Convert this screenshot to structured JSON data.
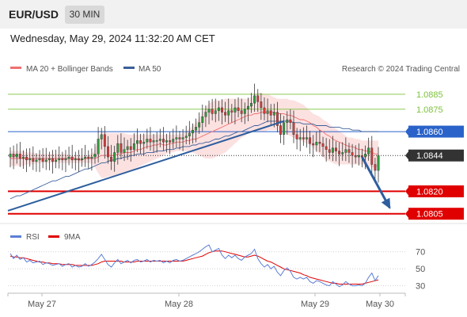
{
  "header": {
    "symbol": "EUR/USD",
    "timeframe": "30 MIN",
    "datetime": "Wednesday, May 29, 2024 11:32:20 AM CET"
  },
  "legend": {
    "ma20_label": "MA 20 + Bollinger Bands",
    "ma50_label": "MA 50",
    "credit": "Research © 2024 Trading Central",
    "rsi_label": "RSI",
    "rsi_ma_label": "9MA"
  },
  "colors": {
    "ma20": "#f07070",
    "bollinger_fill": "#fcdcdc",
    "ma50": "#3a5f9a",
    "resistance": "#7cc23c",
    "support": "#e00000",
    "pivot": "#2a62c9",
    "current": "#333333",
    "arrow": "#2d5e9e",
    "rsi": "#5b7fd6",
    "rsi_ma": "#e00000"
  },
  "chart_data": [
    {
      "type": "candlestick",
      "x_labels": [
        "May 27",
        "May 28",
        "May 29",
        "May 30"
      ],
      "ylim": [
        1.0799,
        1.0894
      ],
      "levels": [
        {
          "value": 1.0885,
          "label": "1.0885",
          "kind": "resistance"
        },
        {
          "value": 1.0875,
          "label": "1.0875",
          "kind": "resistance"
        },
        {
          "value": 1.086,
          "label": "1.0860",
          "kind": "pivot"
        },
        {
          "value": 1.0844,
          "label": "1.0844",
          "kind": "current"
        },
        {
          "value": 1.082,
          "label": "1.0820",
          "kind": "support"
        },
        {
          "value": 1.0805,
          "label": "1.0805",
          "kind": "support"
        }
      ],
      "close": [
        1.0845,
        1.0843,
        1.0845,
        1.0842,
        1.0843,
        1.0841,
        1.0842,
        1.084,
        1.0841,
        1.0842,
        1.084,
        1.0841,
        1.0842,
        1.084,
        1.0841,
        1.0842,
        1.0841,
        1.0842,
        1.0843,
        1.0841,
        1.0842,
        1.0841,
        1.0842,
        1.0843,
        1.0842,
        1.0843,
        1.0845,
        1.0855,
        1.0858,
        1.085,
        1.0843,
        1.084,
        1.0846,
        1.0852,
        1.0846,
        1.0848,
        1.085,
        1.0848,
        1.0852,
        1.0854,
        1.0852,
        1.0853,
        1.0855,
        1.0853,
        1.0854,
        1.0854,
        1.0855,
        1.0853,
        1.0854,
        1.0853,
        1.0855,
        1.0856,
        1.0855,
        1.0856,
        1.0857,
        1.0859,
        1.0861,
        1.0863,
        1.0866,
        1.087,
        1.0873,
        1.0875,
        1.0872,
        1.0874,
        1.0876,
        1.0873,
        1.0871,
        1.0874,
        1.0873,
        1.0876,
        1.0874,
        1.0872,
        1.0875,
        1.0877,
        1.0879,
        1.0884,
        1.088,
        1.0876,
        1.0872,
        1.0874,
        1.0871,
        1.0873,
        1.0864,
        1.0858,
        1.0866,
        1.0868,
        1.0866,
        1.0858,
        1.0855,
        1.0856,
        1.0855,
        1.0856,
        1.0852,
        1.0851,
        1.0853,
        1.0852,
        1.085,
        1.0848,
        1.0846,
        1.0849,
        1.0847,
        1.0845,
        1.0846,
        1.0848,
        1.0846,
        1.0844,
        1.0843,
        1.0844,
        1.0843,
        1.0845,
        1.0849,
        1.0838,
        1.0834,
        1.0844
      ],
      "ma20": [
        1.0842,
        1.0842,
        1.0842,
        1.0842,
        1.0842,
        1.0842,
        1.0842,
        1.0842,
        1.0842,
        1.0842,
        1.0842,
        1.0842,
        1.0842,
        1.0842,
        1.0842,
        1.0842,
        1.0842,
        1.0842,
        1.0842,
        1.0842,
        1.0842,
        1.0841,
        1.0841,
        1.0842,
        1.0842,
        1.0842,
        1.0842,
        1.0843,
        1.0844,
        1.0844,
        1.0844,
        1.0844,
        1.0844,
        1.0845,
        1.0845,
        1.0846,
        1.0846,
        1.0846,
        1.0847,
        1.0848,
        1.0848,
        1.0849,
        1.085,
        1.085,
        1.0851,
        1.0851,
        1.0852,
        1.0851,
        1.0851,
        1.0852,
        1.0852,
        1.0853,
        1.0853,
        1.0853,
        1.0854,
        1.0854,
        1.0855,
        1.0855,
        1.0856,
        1.0857,
        1.0858,
        1.0859,
        1.086,
        1.0861,
        1.0862,
        1.0863,
        1.0864,
        1.0865,
        1.0866,
        1.0867,
        1.0868,
        1.0869,
        1.087,
        1.0871,
        1.0871,
        1.0872,
        1.0872,
        1.0873,
        1.0873,
        1.0873,
        1.0873,
        1.0873,
        1.0872,
        1.0872,
        1.0872,
        1.0871,
        1.0871,
        1.087,
        1.0869,
        1.0868,
        1.0868,
        1.0867,
        1.0866,
        1.0864,
        1.0863,
        1.0861,
        1.086,
        1.0858,
        1.0857,
        1.0855,
        1.0854,
        1.0853,
        1.0852,
        1.0851,
        1.085,
        1.085,
        1.0849,
        1.0848,
        1.0848,
        1.0847,
        1.0847,
        1.0846,
        1.0845,
        1.0845
      ],
      "bollinger_upper": [
        1.0847,
        1.0847,
        1.0847,
        1.0847,
        1.0847,
        1.0846,
        1.0846,
        1.0846,
        1.0845,
        1.0845,
        1.0845,
        1.0845,
        1.0845,
        1.0845,
        1.0845,
        1.0845,
        1.0845,
        1.0845,
        1.0844,
        1.0844,
        1.0844,
        1.0844,
        1.0844,
        1.0844,
        1.0844,
        1.0845,
        1.0848,
        1.0855,
        1.086,
        1.086,
        1.0859,
        1.0859,
        1.0859,
        1.0859,
        1.0859,
        1.0859,
        1.0858,
        1.0858,
        1.0858,
        1.0858,
        1.0858,
        1.0858,
        1.0858,
        1.0858,
        1.0858,
        1.0858,
        1.0858,
        1.0858,
        1.0858,
        1.0858,
        1.0858,
        1.0858,
        1.0858,
        1.0859,
        1.086,
        1.0862,
        1.0864,
        1.0866,
        1.0869,
        1.0873,
        1.0876,
        1.0879,
        1.088,
        1.0881,
        1.0881,
        1.0881,
        1.0882,
        1.0882,
        1.0882,
        1.0882,
        1.0882,
        1.0882,
        1.0882,
        1.0882,
        1.0883,
        1.0885,
        1.0886,
        1.0886,
        1.0885,
        1.0885,
        1.0884,
        1.0883,
        1.0882,
        1.0882,
        1.0882,
        1.0882,
        1.0881,
        1.0881,
        1.088,
        1.0879,
        1.0878,
        1.0876,
        1.0874,
        1.0872,
        1.0871,
        1.087,
        1.0868,
        1.0867,
        1.0865,
        1.0863,
        1.0862,
        1.086,
        1.0859,
        1.0857,
        1.0856,
        1.0856,
        1.0855,
        1.0855,
        1.0854,
        1.0854,
        1.0854,
        1.0854,
        1.0854,
        1.0854
      ],
      "bollinger_lower": [
        1.0837,
        1.0837,
        1.0837,
        1.0837,
        1.0837,
        1.0838,
        1.0838,
        1.0838,
        1.0839,
        1.0839,
        1.0839,
        1.0839,
        1.0839,
        1.0839,
        1.0839,
        1.0839,
        1.0839,
        1.0839,
        1.0839,
        1.0839,
        1.0839,
        1.0839,
        1.0839,
        1.0839,
        1.0839,
        1.0839,
        1.0836,
        1.0832,
        1.0829,
        1.0829,
        1.083,
        1.083,
        1.083,
        1.0831,
        1.0831,
        1.0832,
        1.0833,
        1.0834,
        1.0835,
        1.0836,
        1.0837,
        1.0838,
        1.0839,
        1.084,
        1.0841,
        1.0842,
        1.0843,
        1.0844,
        1.0845,
        1.0846,
        1.0846,
        1.0847,
        1.0847,
        1.0847,
        1.0847,
        1.0846,
        1.0846,
        1.0845,
        1.0844,
        1.0843,
        1.0842,
        1.0842,
        1.0842,
        1.0843,
        1.0844,
        1.0845,
        1.0846,
        1.0848,
        1.085,
        1.0852,
        1.0854,
        1.0856,
        1.0857,
        1.0859,
        1.086,
        1.086,
        1.086,
        1.086,
        1.086,
        1.0861,
        1.0861,
        1.0861,
        1.0861,
        1.086,
        1.0859,
        1.0858,
        1.0857,
        1.0856,
        1.0855,
        1.0854,
        1.0853,
        1.0852,
        1.0851,
        1.0849,
        1.0847,
        1.0845,
        1.0843,
        1.0841,
        1.084,
        1.0839,
        1.0838,
        1.0838,
        1.0838,
        1.0838,
        1.0838,
        1.0838,
        1.0838,
        1.0838,
        1.0838,
        1.0837,
        1.0836,
        1.0836,
        1.0836,
        1.0836
      ],
      "ma50": [
        1.0815,
        1.0816,
        1.0817,
        1.0817,
        1.0818,
        1.0819,
        1.082,
        1.0821,
        1.0822,
        1.0823,
        1.0824,
        1.0825,
        1.0826,
        1.0827,
        1.0827,
        1.0828,
        1.0829,
        1.083,
        1.083,
        1.0831,
        1.0832,
        1.0833,
        1.0834,
        1.0835,
        1.0835,
        1.0836,
        1.0837,
        1.0838,
        1.0839,
        1.0839,
        1.084,
        1.0841,
        1.0841,
        1.0842,
        1.0842,
        1.0843,
        1.0843,
        1.0844,
        1.0844,
        1.0845,
        1.0845,
        1.0845,
        1.0846,
        1.0846,
        1.0846,
        1.0847,
        1.0847,
        1.0847,
        1.0848,
        1.0848,
        1.0848,
        1.0849,
        1.0849,
        1.085,
        1.085,
        1.085,
        1.0851,
        1.0851,
        1.0852,
        1.0852,
        1.0853,
        1.0853,
        1.0854,
        1.0855,
        1.0855,
        1.0856,
        1.0857,
        1.0857,
        1.0858,
        1.0859,
        1.086,
        1.086,
        1.0861,
        1.0862,
        1.0863,
        1.0864,
        1.0864,
        1.0865,
        1.0866,
        1.0867,
        1.0867,
        1.0867,
        1.0867,
        1.0867,
        1.0867,
        1.0867,
        1.0867,
        1.0866,
        1.0866,
        1.0866,
        1.0865,
        1.0865,
        1.0865,
        1.0865,
        1.0864,
        1.0864,
        1.0864,
        1.0864,
        1.0863,
        1.0863,
        1.0863,
        1.0863,
        1.0862,
        1.0862,
        1.0862,
        1.0861,
        1.0861,
        1.0861,
        1.086,
        1.086,
        1.086,
        1.086,
        1.086,
        1.086
      ],
      "trendline": {
        "from": [
          0,
          1.0807
        ],
        "to": [
          84,
          1.0867
        ]
      },
      "forecast_arrow": {
        "from": [
          108,
          1.0843
        ],
        "to": [
          116,
          1.0809
        ]
      }
    },
    {
      "type": "line",
      "title": "RSI",
      "yticks": [
        30,
        50,
        70
      ],
      "ylim": [
        25,
        80
      ],
      "series": [
        {
          "name": "RSI",
          "values": [
            68,
            62,
            66,
            61,
            63,
            58,
            60,
            57,
            58,
            59,
            55,
            57,
            56,
            54,
            55,
            56,
            53,
            55,
            56,
            52,
            54,
            52,
            53,
            56,
            53,
            55,
            58,
            62,
            67,
            61,
            55,
            52,
            57,
            61,
            56,
            58,
            60,
            57,
            60,
            61,
            58,
            59,
            61,
            58,
            60,
            59,
            60,
            57,
            59,
            57,
            60,
            61,
            59,
            60,
            62,
            64,
            66,
            68,
            70,
            73,
            76,
            78,
            70,
            72,
            74,
            66,
            62,
            66,
            63,
            66,
            62,
            60,
            64,
            66,
            68,
            73,
            62,
            56,
            52,
            55,
            50,
            53,
            46,
            42,
            48,
            51,
            47,
            40,
            38,
            40,
            38,
            40,
            35,
            33,
            36,
            35,
            33,
            31,
            30,
            35,
            32,
            29,
            31,
            35,
            32,
            30,
            30,
            31,
            30,
            33,
            40,
            45,
            36,
            42
          ]
        },
        {
          "name": "9MA",
          "values": [
            65,
            64,
            64,
            63,
            63,
            62,
            61,
            60,
            59,
            58,
            58,
            57,
            57,
            56,
            56,
            56,
            55,
            55,
            55,
            55,
            54,
            54,
            54,
            54,
            54,
            54,
            55,
            56,
            58,
            59,
            59,
            59,
            59,
            59,
            59,
            58,
            58,
            58,
            58,
            59,
            59,
            59,
            59,
            59,
            59,
            59,
            59,
            59,
            59,
            59,
            59,
            59,
            59,
            59,
            60,
            61,
            62,
            63,
            64,
            65,
            67,
            69,
            70,
            71,
            71,
            71,
            70,
            69,
            68,
            67,
            66,
            65,
            64,
            64,
            65,
            66,
            65,
            63,
            61,
            59,
            58,
            56,
            54,
            52,
            50,
            49,
            48,
            47,
            46,
            45,
            43,
            42,
            40,
            39,
            38,
            37,
            36,
            35,
            34,
            33,
            33,
            32,
            32,
            32,
            32,
            32,
            32,
            32,
            32,
            33,
            34,
            35,
            36,
            37
          ]
        }
      ]
    }
  ]
}
